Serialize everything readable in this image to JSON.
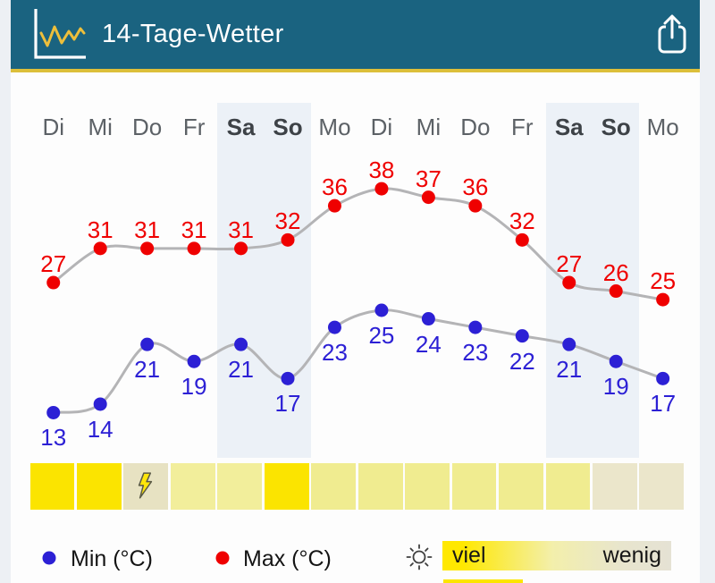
{
  "header": {
    "title": "14-Tage-Wetter"
  },
  "chart_data": {
    "type": "line",
    "title": "14-Tage-Wetter",
    "categories": [
      "Di",
      "Mi",
      "Do",
      "Fr",
      "Sa",
      "So",
      "Mo",
      "Di",
      "Mi",
      "Do",
      "Fr",
      "Sa",
      "So",
      "Mo"
    ],
    "weekend_columns": [
      [
        4,
        5
      ],
      [
        11,
        12
      ]
    ],
    "series": [
      {
        "name": "Max (°C)",
        "color": "#ef0000",
        "values": [
          27,
          31,
          31,
          31,
          31,
          32,
          36,
          38,
          37,
          36,
          32,
          27,
          26,
          25
        ]
      },
      {
        "name": "Min (°C)",
        "color": "#2c20d5",
        "values": [
          13,
          14,
          21,
          19,
          21,
          17,
          23,
          25,
          24,
          23,
          22,
          21,
          19,
          17
        ]
      }
    ],
    "line_color": "#b4b4b6",
    "grid": false,
    "legend_position": "bottom"
  },
  "sun_row": {
    "squares": [
      {
        "color": "#fbe400"
      },
      {
        "color": "#fbe400"
      },
      {
        "color": "#e7e2c2",
        "icon": "thunder-icon"
      },
      {
        "color": "#f2ee9b"
      },
      {
        "color": "#f2ee9b"
      },
      {
        "color": "#fbe400"
      },
      {
        "color": "#f0ec90"
      },
      {
        "color": "#f0ec90"
      },
      {
        "color": "#f0ec90"
      },
      {
        "color": "#f0ec90"
      },
      {
        "color": "#f0ec90"
      },
      {
        "color": "#f0ec90"
      },
      {
        "color": "#ebe6cb"
      },
      {
        "color": "#ebe6cb"
      }
    ]
  },
  "legend": {
    "min": {
      "label": "Min (°C)",
      "color": "#2c20d5"
    },
    "max": {
      "label": "Max (°C)",
      "color": "#ef0000"
    },
    "sun_scale": {
      "left": "viel",
      "right": "wenig",
      "from": "#ffe800",
      "to": "#e5e2d4"
    }
  }
}
